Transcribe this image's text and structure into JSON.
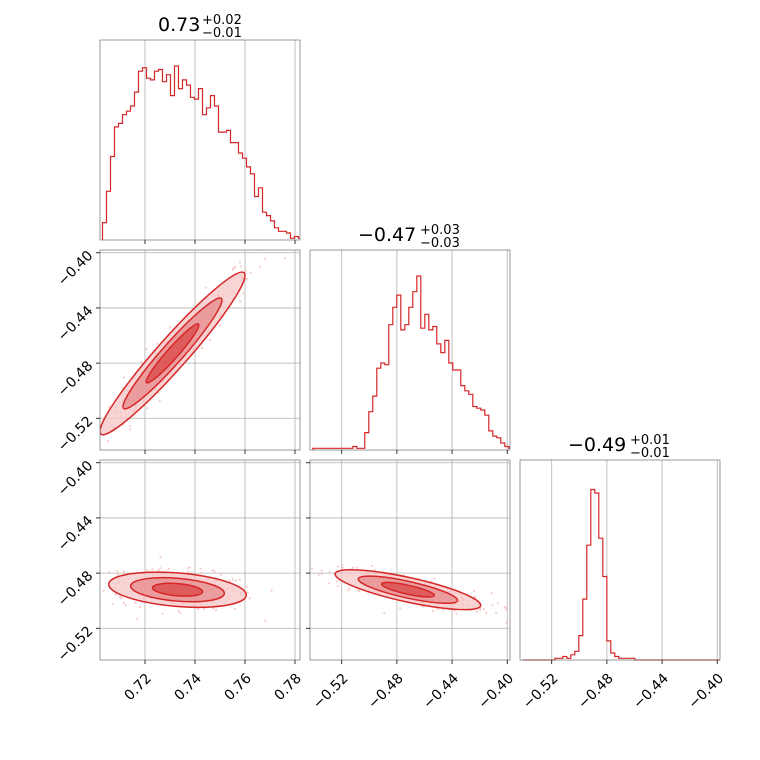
{
  "colors": {
    "line": "#d62728",
    "fill_inner": "#e78b8c",
    "fill_outer": "#f5c6c6",
    "scatter": "#f2b5b5",
    "grid": "#b0b0b0",
    "frame": "#808080"
  },
  "chart_data": {
    "type": "corner",
    "titles": [
      {
        "main": "0.73",
        "plus": "+0.02",
        "minus": "−0.01"
      },
      {
        "main": "−0.47",
        "plus": "+0.03",
        "minus": "−0.03"
      },
      {
        "main": "−0.49",
        "plus": "+0.01",
        "minus": "−0.01"
      }
    ],
    "ranges": [
      [
        0.702,
        0.782
      ],
      [
        -0.543,
        -0.398
      ],
      [
        -0.543,
        -0.398
      ]
    ],
    "ticks": [
      {
        "values": [
          0.72,
          0.74,
          0.76,
          0.78
        ],
        "labels": [
          "0.72",
          "0.74",
          "0.76",
          "0.78"
        ]
      },
      {
        "values": [
          -0.52,
          -0.48,
          -0.44,
          -0.4
        ],
        "labels": [
          "−0.52",
          "−0.48",
          "−0.44",
          "−0.40"
        ]
      },
      {
        "values": [
          -0.52,
          -0.48,
          -0.44,
          -0.4
        ],
        "labels": [
          "−0.52",
          "−0.48",
          "−0.44",
          "−0.40"
        ]
      }
    ],
    "histograms": [
      {
        "x": 0.703,
        "dx": 0.0016,
        "y": [
          0.1,
          0.28,
          0.48,
          0.65,
          0.67,
          0.72,
          0.74,
          0.77,
          0.85,
          0.97,
          0.99,
          0.93,
          0.92,
          0.97,
          0.98,
          0.91,
          0.95,
          0.83,
          1.0,
          0.87,
          0.92,
          0.89,
          0.82,
          0.81,
          0.87,
          0.72,
          0.76,
          0.83,
          0.77,
          0.62,
          0.62,
          0.63,
          0.56,
          0.56,
          0.5,
          0.47,
          0.42,
          0.38,
          0.25,
          0.3,
          0.16,
          0.14,
          0.11,
          0.07,
          0.05,
          0.05,
          0.04,
          0.01,
          0.02,
          0.01
        ]
      },
      {
        "x": -0.541,
        "dx": 0.0029,
        "y": [
          0.01,
          0.01,
          0.01,
          0.01,
          0.01,
          0.01,
          0.01,
          0.01,
          0.01,
          0.01,
          0.02,
          0.01,
          0.01,
          0.1,
          0.22,
          0.31,
          0.47,
          0.5,
          0.49,
          0.72,
          0.82,
          0.89,
          0.69,
          0.72,
          0.82,
          0.91,
          1.0,
          0.7,
          0.78,
          0.69,
          0.71,
          0.61,
          0.56,
          0.63,
          0.5,
          0.46,
          0.46,
          0.37,
          0.34,
          0.32,
          0.25,
          0.24,
          0.23,
          0.2,
          0.11,
          0.08,
          0.07,
          0.04,
          0.02,
          0.01
        ]
      },
      {
        "x": -0.541,
        "dx": 0.0029,
        "y": [
          0.0,
          0.0,
          0.0,
          0.0,
          0.0,
          0.0,
          0.0,
          0.0,
          0.01,
          0.01,
          0.02,
          0.01,
          0.03,
          0.05,
          0.14,
          0.35,
          0.66,
          0.98,
          0.96,
          0.7,
          0.48,
          0.11,
          0.04,
          0.02,
          0.01,
          0.01,
          0.01,
          0.01,
          0.0,
          0.0,
          0.0,
          0.0,
          0.0,
          0.0,
          0.0,
          0.0,
          0.0,
          0.0,
          0.0,
          0.0,
          0.0,
          0.0,
          0.0,
          0.0,
          0.0,
          0.0,
          0.0,
          0.0,
          0.0,
          0.0
        ]
      }
    ],
    "pairs": [
      {
        "row": 1,
        "col": 0,
        "mean": [
          0.731,
          -0.473
        ],
        "sd": [
          0.0132,
          0.0268
        ],
        "rho": 0.96
      },
      {
        "row": 2,
        "col": 0,
        "mean": [
          0.733,
          -0.492
        ],
        "sd": [
          0.0125,
          0.0058
        ],
        "rho": -0.3
      },
      {
        "row": 2,
        "col": 1,
        "mean": [
          -0.472,
          -0.492
        ],
        "sd": [
          0.024,
          0.0066
        ],
        "rho": -0.78
      }
    ]
  }
}
